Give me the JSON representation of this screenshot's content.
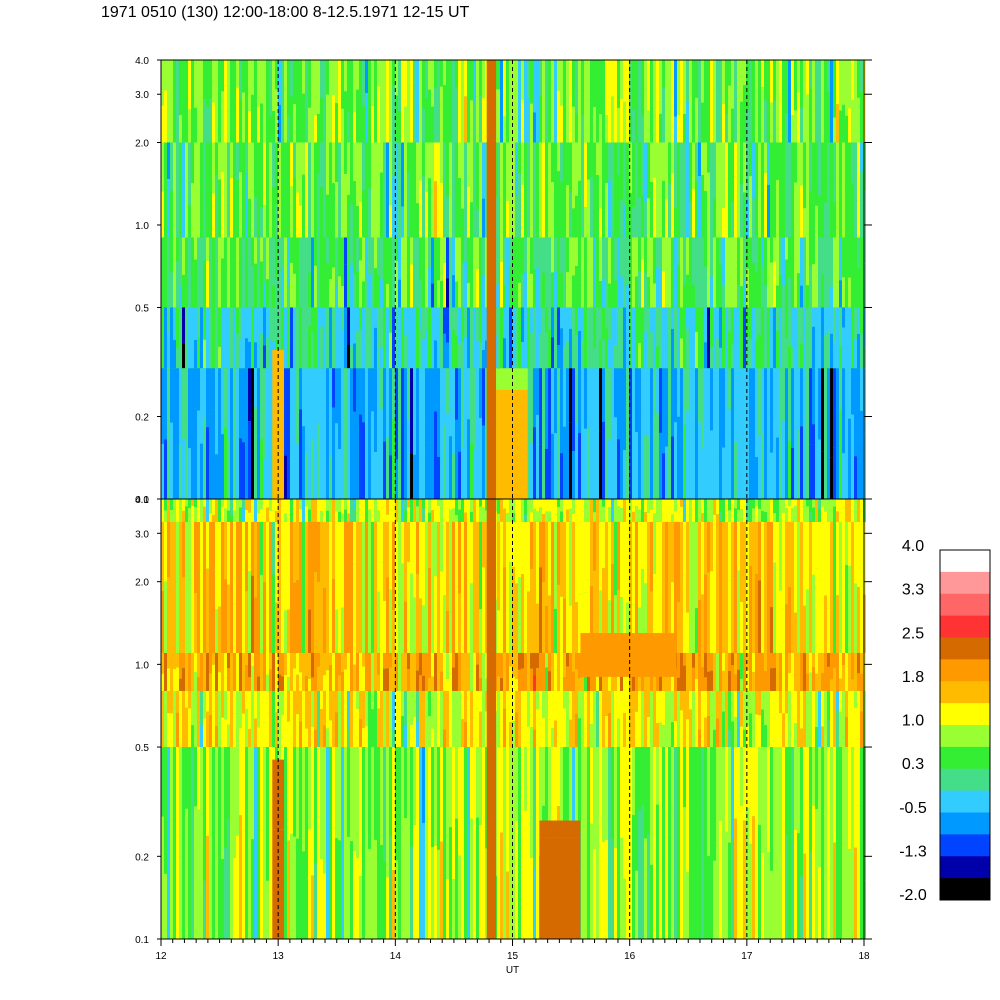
{
  "title": "1971 0510 (130) 12:00-18:00 8-12.5.1971  12-15 UT",
  "chart_data": [
    {
      "type": "heatmap",
      "panel": "top",
      "xlabel": "",
      "ylabel": "",
      "xlim": [
        12,
        18
      ],
      "ylim": [
        0.1,
        4.0
      ],
      "y_scale": "log",
      "y_ticks": [
        0.1,
        0.2,
        0.5,
        1.0,
        2.0,
        3.0,
        4.0
      ],
      "y_tick_labels": [
        "0.1",
        "0.2",
        "0.5",
        "1.0",
        "2.0",
        "3.0",
        "4.0"
      ],
      "dashed_hour_lines": [
        13,
        14,
        15,
        16,
        17
      ],
      "band_levels": [
        {
          "y_range": [
            2.0,
            4.0
          ],
          "level": 0.6
        },
        {
          "y_range": [
            0.9,
            2.0
          ],
          "level": 0.5
        },
        {
          "y_range": [
            0.5,
            0.9
          ],
          "level": 0.3
        },
        {
          "y_range": [
            0.3,
            0.5
          ],
          "level": -0.1
        },
        {
          "y_range": [
            0.1,
            0.3
          ],
          "level": -0.5
        }
      ],
      "features": [
        {
          "x_range": [
            12.95,
            13.05
          ],
          "y_range": [
            0.1,
            0.35
          ],
          "level": 1.8
        },
        {
          "x_range": [
            14.78,
            14.86
          ],
          "y_range": [
            0.1,
            4.0
          ],
          "level": 2.5
        },
        {
          "x_range": [
            14.86,
            15.13
          ],
          "y_range": [
            0.1,
            0.25
          ],
          "level": 1.8
        },
        {
          "x_range": [
            14.86,
            15.13
          ],
          "y_range": [
            0.25,
            0.3
          ],
          "level": 1.0
        }
      ]
    },
    {
      "type": "heatmap",
      "panel": "bottom",
      "xlabel": "UT",
      "ylabel": "",
      "xlim": [
        12,
        18
      ],
      "ylim": [
        0.1,
        4.0
      ],
      "y_scale": "log",
      "x_ticks": [
        12,
        13,
        14,
        15,
        16,
        17,
        18
      ],
      "x_tick_labels": [
        "12",
        "13",
        "14",
        "15",
        "16",
        "17",
        "18"
      ],
      "y_ticks": [
        0.1,
        0.2,
        0.5,
        1.0,
        2.0,
        3.0,
        4.0
      ],
      "y_tick_labels": [
        "0.1",
        "0.2",
        "0.5",
        "1.0",
        "2.0",
        "3.0",
        "4.0"
      ],
      "dashed_hour_lines": [
        13,
        14,
        15,
        16,
        17
      ],
      "band_levels": [
        {
          "y_range": [
            3.3,
            4.0
          ],
          "level": 1.0
        },
        {
          "y_range": [
            1.1,
            3.3
          ],
          "level": 1.5
        },
        {
          "y_range": [
            0.8,
            1.1
          ],
          "level": 1.8
        },
        {
          "y_range": [
            0.5,
            0.8
          ],
          "level": 1.2
        },
        {
          "y_range": [
            0.1,
            0.5
          ],
          "level": 0.8
        }
      ],
      "features": [
        {
          "x_range": [
            12.95,
            13.05
          ],
          "y_range": [
            0.1,
            0.25
          ],
          "level": 2.5
        },
        {
          "x_range": [
            12.95,
            13.05
          ],
          "y_range": [
            0.25,
            0.45
          ],
          "level": 2.2
        },
        {
          "x_range": [
            14.78,
            14.86
          ],
          "y_range": [
            0.1,
            4.0
          ],
          "level": 2.5
        },
        {
          "x_range": [
            15.23,
            15.58
          ],
          "y_range": [
            0.1,
            0.235
          ],
          "level": 2.5
        },
        {
          "x_range": [
            15.23,
            15.58
          ],
          "y_range": [
            0.235,
            0.27
          ],
          "level": 2.2
        },
        {
          "x_range": [
            15.58,
            16.4
          ],
          "y_range": [
            0.9,
            1.3
          ],
          "level": 2.0
        }
      ]
    }
  ],
  "colorbar": {
    "labels": [
      "4.0",
      "3.3",
      "2.5",
      "1.8",
      "1.0",
      "0.3",
      "-0.5",
      "-1.3",
      "-2.0"
    ],
    "colors_top_to_bottom": [
      "#ffffff",
      "#ff9999",
      "#ff6666",
      "#ff3333",
      "#d46a00",
      "#ff9900",
      "#ffbb00",
      "#ffff00",
      "#99ff33",
      "#33ee33",
      "#44dd88",
      "#33ccff",
      "#0099ff",
      "#0044ff",
      "#0000aa",
      "#000000"
    ]
  }
}
